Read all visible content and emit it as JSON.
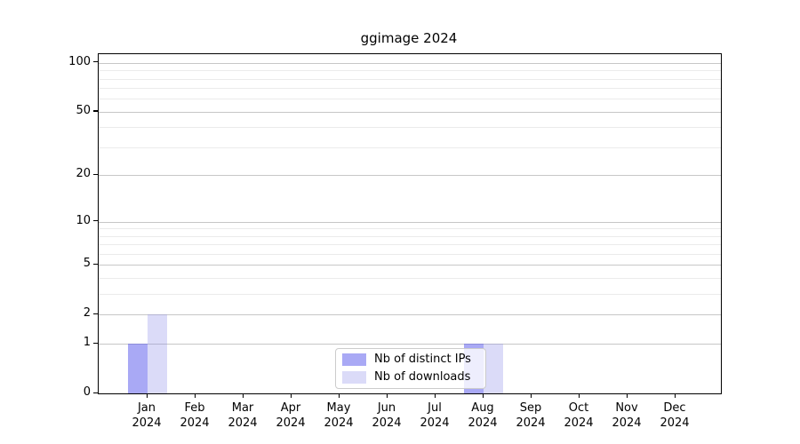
{
  "title": "ggimage 2024",
  "chart_data": {
    "type": "bar",
    "title": "ggimage 2024",
    "categories": [
      "Jan 2024",
      "Feb 2024",
      "Mar 2024",
      "Apr 2024",
      "May 2024",
      "Jun 2024",
      "Jul 2024",
      "Aug 2024",
      "Sep 2024",
      "Oct 2024",
      "Nov 2024",
      "Dec 2024"
    ],
    "series": [
      {
        "name": "Nb of distinct IPs",
        "color": "rgba(83,83,235,0.5)",
        "values": [
          1,
          0,
          0,
          0,
          0,
          0,
          0,
          1,
          0,
          0,
          0,
          0
        ]
      },
      {
        "name": "Nb of downloads",
        "color": "rgba(135,135,232,0.3)",
        "values": [
          2,
          0,
          0,
          0,
          0,
          0,
          0,
          1,
          0,
          0,
          0,
          0
        ]
      }
    ],
    "xlabel": "",
    "ylabel": "",
    "yscale": "log1p",
    "yticks": [
      0,
      1,
      2,
      5,
      10,
      20,
      50,
      100
    ],
    "minor_yticks": [
      3,
      4,
      6,
      7,
      8,
      9,
      30,
      40,
      60,
      70,
      80,
      90
    ],
    "ylim": [
      0,
      113
    ],
    "grid": "horizontal",
    "legend_position": "lower-center-inside",
    "colors": {
      "bar_dark_rendered": "#a9a9f5",
      "bar_light_rendered": "#dbdbf8",
      "grid_major": "#c7c7c7",
      "grid_minor": "#ebebeb",
      "axis": "#000000",
      "legend_border": "#cccccc"
    }
  }
}
